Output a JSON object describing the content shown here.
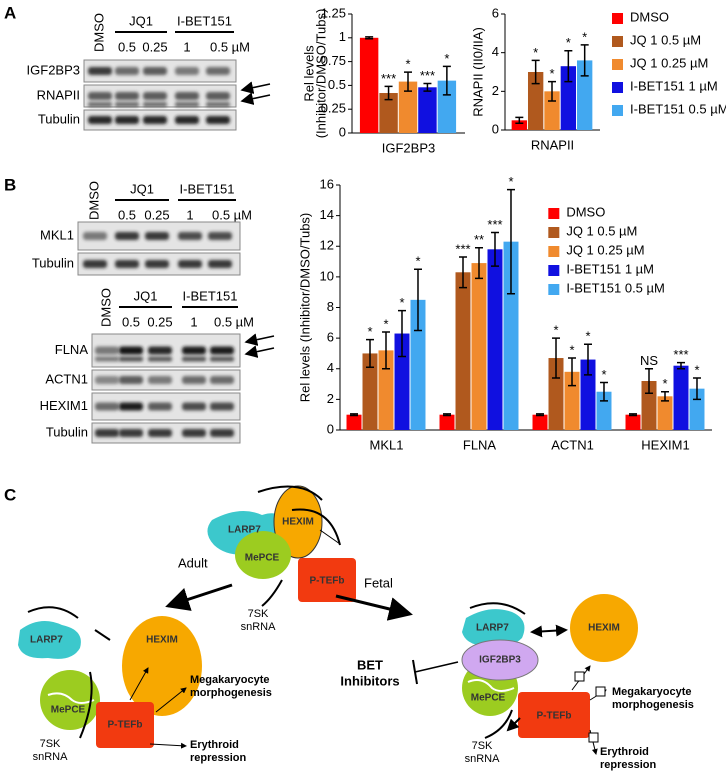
{
  "panel_a": {
    "label": "A",
    "blot": {
      "control": "DMSO",
      "groups": [
        "JQ1",
        "I-BET151"
      ],
      "doses": [
        "0.5",
        "0.25",
        "1",
        "0.5 µM"
      ],
      "rows": [
        "IGF2BP3",
        "RNAPII",
        "Tubulin"
      ]
    }
  },
  "panel_b": {
    "label": "B",
    "blot_top": {
      "control": "DMSO",
      "groups": [
        "JQ1",
        "I-BET151"
      ],
      "doses": [
        "0.5",
        "0.25",
        "1",
        "0.5 µM"
      ],
      "rows": [
        "MKL1",
        "Tubulin"
      ]
    },
    "blot_bottom": {
      "control": "DMSO",
      "groups": [
        "JQ1",
        "I-BET151"
      ],
      "doses": [
        "0.5",
        "0.25",
        "1",
        "0.5 µM"
      ],
      "rows": [
        "FLNA",
        "ACTN1",
        "HEXIM1",
        "Tubulin"
      ]
    }
  },
  "chart_data": [
    {
      "type": "bar",
      "ylabel": [
        "Rel levels",
        "(Inhibitor/DMSO/Tubs)"
      ],
      "categories": [
        "IGF2BP3"
      ],
      "ylim": [
        0,
        1.25
      ],
      "yticks": [
        0,
        0.25,
        0.5,
        0.75,
        1,
        1.25
      ],
      "series": [
        {
          "color": "#ff0000",
          "values": [
            1
          ],
          "errors": [
            0.01
          ]
        },
        {
          "color": "#b0591e",
          "values": [
            0.42
          ],
          "errors": [
            0.07
          ],
          "annotations": [
            "***"
          ]
        },
        {
          "color": "#f08a2e",
          "values": [
            0.54
          ],
          "errors": [
            0.1
          ],
          "annotations": [
            "*"
          ]
        },
        {
          "color": "#1010e0",
          "values": [
            0.48
          ],
          "errors": [
            0.04
          ],
          "annotations": [
            "***"
          ]
        },
        {
          "color": "#42a8f0",
          "values": [
            0.55
          ],
          "errors": [
            0.15
          ],
          "annotations": [
            "*"
          ]
        }
      ]
    },
    {
      "type": "bar",
      "ylabel": [
        "RNAPII (II0/IIA)"
      ],
      "categories": [
        "RNAPII"
      ],
      "ylim": [
        0,
        6
      ],
      "yticks": [
        0,
        2,
        4,
        6
      ],
      "legend": "right",
      "series": [
        {
          "name": "DMSO",
          "color": "#ff0000",
          "values": [
            0.5
          ],
          "errors": [
            0.15
          ]
        },
        {
          "name": "JQ 1  0.5 µM",
          "color": "#b0591e",
          "values": [
            3.0
          ],
          "errors": [
            0.6
          ],
          "annotations": [
            "*"
          ]
        },
        {
          "name": "JQ 1 0.25 µM",
          "color": "#f08a2e",
          "values": [
            2.0
          ],
          "errors": [
            0.5
          ],
          "annotations": [
            "*"
          ]
        },
        {
          "name": "I-BET151 1 µM",
          "color": "#1010e0",
          "values": [
            3.3
          ],
          "errors": [
            0.8
          ],
          "annotations": [
            "*"
          ]
        },
        {
          "name": "I-BET151 0.5 µM",
          "color": "#42a8f0",
          "values": [
            3.6
          ],
          "errors": [
            0.8
          ],
          "annotations": [
            "*"
          ]
        }
      ]
    },
    {
      "type": "bar",
      "ylabel": [
        "Rel levels (Inhibitor/DMSO/Tubs)"
      ],
      "categories": [
        "MKL1",
        "FLNA",
        "ACTN1",
        "HEXIM1"
      ],
      "ylim": [
        0,
        16
      ],
      "yticks": [
        0,
        2,
        4,
        6,
        8,
        10,
        12,
        14,
        16
      ],
      "legend": "upper center",
      "series": [
        {
          "name": "DMSO",
          "color": "#ff0000",
          "values": [
            1,
            1,
            1,
            1
          ],
          "errors": [
            0.05,
            0.05,
            0.05,
            0.05
          ]
        },
        {
          "name": "JQ 1 0.5 µM",
          "color": "#b0591e",
          "values": [
            5.0,
            10.3,
            4.7,
            3.2
          ],
          "errors": [
            0.9,
            1.0,
            1.3,
            0.8
          ],
          "annotations": [
            "*",
            "***",
            "*",
            "NS"
          ]
        },
        {
          "name": "JQ 1 0.25 µM",
          "color": "#f08a2e",
          "values": [
            5.2,
            10.9,
            3.8,
            2.2
          ],
          "errors": [
            1.2,
            1.0,
            0.9,
            0.3
          ],
          "annotations": [
            "*",
            "**",
            "*",
            "*"
          ]
        },
        {
          "name": "I-BET151 1 µM",
          "color": "#1010e0",
          "values": [
            6.3,
            11.8,
            4.6,
            4.2
          ],
          "errors": [
            1.5,
            1.1,
            1.0,
            0.2
          ],
          "annotations": [
            "*",
            "***",
            "*",
            "***"
          ]
        },
        {
          "name": "I-BET151 0.5 µM",
          "color": "#42a8f0",
          "values": [
            8.5,
            12.3,
            2.5,
            2.7
          ],
          "errors": [
            2.0,
            3.4,
            0.6,
            0.7
          ],
          "annotations": [
            "*",
            "*",
            "*",
            "*"
          ]
        }
      ]
    }
  ],
  "panel_c": {
    "label": "C",
    "top": {
      "larp7": "LARP7",
      "hexim": "HEXIM",
      "mepce": "MePCE",
      "ptefb": "P-TEFb",
      "rna": [
        "7SK",
        "snRNA"
      ]
    },
    "adult": "Adult",
    "fetal": "Fetal",
    "left": {
      "larp7": "LARP7",
      "hexim": "HEXIM",
      "mepce": "MePCE",
      "ptefb": "P-TEFb",
      "rna": [
        "7SK",
        "snRNA"
      ],
      "mk": [
        "Megakaryocyte",
        "morphogenesis"
      ],
      "ery": [
        "Erythroid",
        "repression"
      ]
    },
    "right": {
      "larp7": "LARP7",
      "igf": "IGF2BP3",
      "hexim": "HEXIM",
      "mepce": "MePCE",
      "ptefb": "P-TEFb",
      "rna": [
        "7SK",
        "snRNA"
      ],
      "mk": [
        "Megakaryocyte",
        "morphogenesis"
      ],
      "ery": [
        "Erythroid",
        "repression"
      ],
      "bet": [
        "BET",
        "Inhibitors"
      ]
    }
  }
}
